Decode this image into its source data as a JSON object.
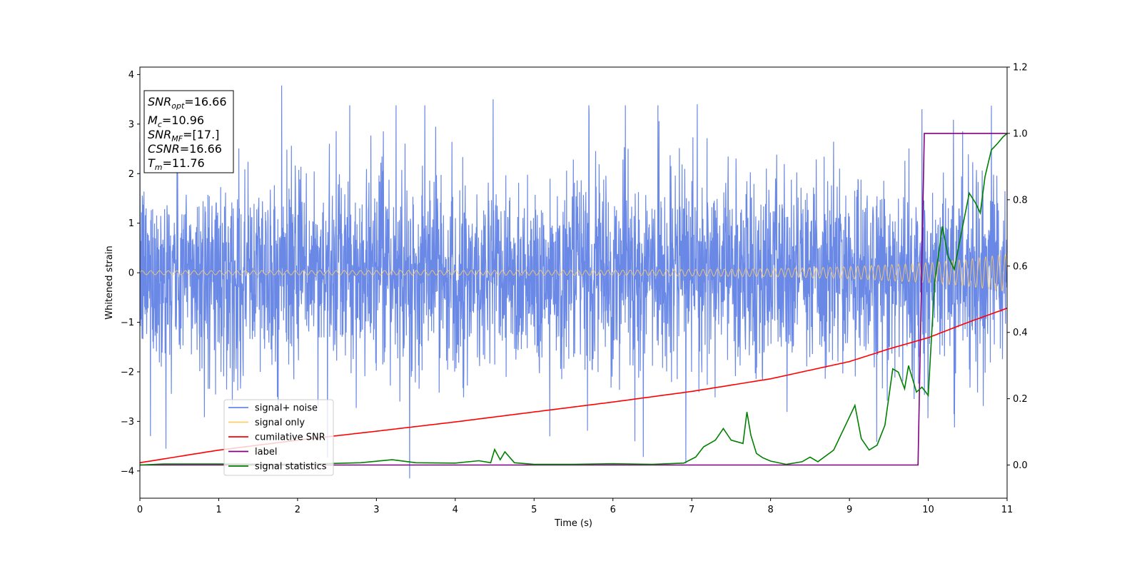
{
  "chart_data": {
    "type": "line",
    "xlabel": "Time (s)",
    "ylabel": "Whitened strain",
    "xlim": [
      0,
      11
    ],
    "ylim_left": [
      -4.55,
      4.15
    ],
    "ylim_right": [
      -0.1,
      1.2
    ],
    "xticks": [
      0,
      1,
      2,
      3,
      4,
      5,
      6,
      7,
      8,
      9,
      10,
      11
    ],
    "yticks_left": [
      -4,
      -3,
      -2,
      -1,
      0,
      1,
      2,
      3,
      4
    ],
    "yticks_right": [
      0.0,
      0.2,
      0.4,
      0.6,
      0.8,
      1.0,
      1.2
    ],
    "legend_position": "lower-left",
    "legend": [
      {
        "name": "signal+ noise",
        "color": "#6a88e6"
      },
      {
        "name": "signal only",
        "color": "#ffcc66"
      },
      {
        "name": "cumilative SNR",
        "color": "#ff0000"
      },
      {
        "name": "label",
        "color": "#800080"
      },
      {
        "name": "signal statistics",
        "color": "#008000"
      }
    ],
    "stats_box": [
      {
        "base": "SNR",
        "sub": "opt",
        "value": "=16.66"
      },
      {
        "base": "M",
        "sub": "c",
        "value": "=10.96"
      },
      {
        "base": "SNR",
        "sub": "MF",
        "value": "=[17.]"
      },
      {
        "base": "CSNR",
        "sub": "",
        "value": "=16.66"
      },
      {
        "base": "T",
        "sub": "m",
        "value": "=11.76"
      }
    ],
    "series": [
      {
        "name": "signal+ noise",
        "axis": "left",
        "description_range": [
          -4.15,
          3.78
        ],
        "std": 1.0,
        "peaks": [
          [
            1.8,
            3.78
          ],
          [
            4.48,
            3.5
          ],
          [
            7.07,
            3.4
          ],
          [
            9.92,
            3.3
          ],
          [
            3.42,
            -4.15
          ],
          [
            0.33,
            -3.55
          ],
          [
            5.2,
            -3.3
          ],
          [
            6.28,
            -3.4
          ]
        ]
      },
      {
        "name": "signal only",
        "axis": "left",
        "amplitude_envelope": {
          "x": [
            0,
            6,
            8,
            9,
            10,
            10.5,
            11
          ],
          "y": [
            0.04,
            0.05,
            0.08,
            0.12,
            0.2,
            0.27,
            0.38
          ]
        }
      },
      {
        "name": "cumilative SNR",
        "axis": "right",
        "x": [
          0,
          1,
          2,
          3,
          4,
          5,
          6,
          7,
          8,
          9,
          9.5,
          10,
          10.5,
          11
        ],
        "y": [
          0.007,
          0.045,
          0.075,
          0.102,
          0.13,
          0.16,
          0.19,
          0.222,
          0.26,
          0.312,
          0.35,
          0.384,
          0.43,
          0.473
        ]
      },
      {
        "name": "label",
        "axis": "right",
        "x": [
          0,
          9.87,
          9.95,
          11
        ],
        "y": [
          0,
          0,
          1,
          1
        ]
      },
      {
        "name": "signal statistics",
        "axis": "right",
        "x": [
          0,
          0.3,
          1,
          2,
          2.8,
          3.2,
          3.5,
          4.0,
          4.3,
          4.45,
          4.5,
          4.57,
          4.63,
          4.75,
          5.0,
          5.5,
          6.0,
          6.5,
          6.9,
          7.05,
          7.15,
          7.3,
          7.4,
          7.5,
          7.65,
          7.7,
          7.75,
          7.82,
          7.9,
          8.0,
          8.2,
          8.4,
          8.5,
          8.6,
          8.8,
          8.95,
          9.07,
          9.15,
          9.25,
          9.35,
          9.45,
          9.55,
          9.62,
          9.7,
          9.75,
          9.8,
          9.85,
          9.92,
          10.0,
          10.08,
          10.18,
          10.25,
          10.33,
          10.42,
          10.52,
          10.6,
          10.66,
          10.72,
          10.8,
          10.88,
          10.95,
          11.0
        ],
        "y": [
          0.0,
          0.003,
          0.003,
          0.002,
          0.007,
          0.016,
          0.007,
          0.006,
          0.013,
          0.007,
          0.047,
          0.016,
          0.04,
          0.007,
          0.002,
          0.002,
          0.004,
          0.002,
          0.006,
          0.024,
          0.055,
          0.075,
          0.11,
          0.075,
          0.065,
          0.16,
          0.09,
          0.035,
          0.022,
          0.012,
          0.002,
          0.01,
          0.024,
          0.01,
          0.045,
          0.12,
          0.18,
          0.08,
          0.045,
          0.06,
          0.12,
          0.29,
          0.28,
          0.23,
          0.3,
          0.26,
          0.22,
          0.235,
          0.21,
          0.55,
          0.72,
          0.63,
          0.59,
          0.7,
          0.82,
          0.79,
          0.76,
          0.87,
          0.95,
          0.97,
          0.99,
          1.0
        ]
      }
    ]
  }
}
